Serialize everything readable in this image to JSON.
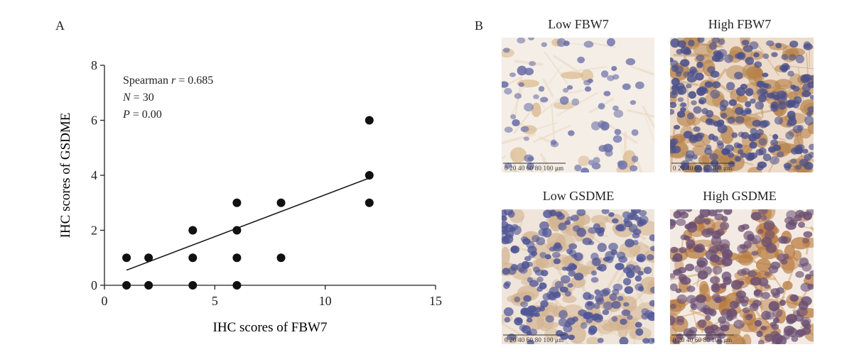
{
  "panels": {
    "a_letter": "A",
    "b_letter": "B"
  },
  "chart_data": {
    "type": "scatter",
    "xlabel": "IHC scores of FBW7",
    "ylabel": "IHC scores of GSDME",
    "xlim": [
      0,
      15
    ],
    "ylim": [
      0,
      8
    ],
    "xticks": [
      0,
      5,
      10,
      15
    ],
    "yticks": [
      0,
      2,
      4,
      6,
      8
    ],
    "points": [
      {
        "x": 1,
        "y": 0
      },
      {
        "x": 1,
        "y": 1
      },
      {
        "x": 2,
        "y": 0
      },
      {
        "x": 2,
        "y": 1
      },
      {
        "x": 4,
        "y": 0
      },
      {
        "x": 4,
        "y": 1
      },
      {
        "x": 4,
        "y": 2
      },
      {
        "x": 6,
        "y": 0
      },
      {
        "x": 6,
        "y": 1
      },
      {
        "x": 6,
        "y": 2
      },
      {
        "x": 6,
        "y": 3
      },
      {
        "x": 8,
        "y": 1
      },
      {
        "x": 8,
        "y": 3
      },
      {
        "x": 12,
        "y": 3
      },
      {
        "x": 12,
        "y": 4
      },
      {
        "x": 12,
        "y": 6
      }
    ],
    "fit_line": {
      "x": [
        1,
        12
      ],
      "y": [
        0.55,
        3.9
      ]
    },
    "annotations": [
      {
        "label": "Spearman ",
        "symbol": "r",
        "value": " = 0.685"
      },
      {
        "label": "",
        "symbol": "N",
        "value": " = 30"
      },
      {
        "label": "",
        "symbol": "P",
        "value": " = 0.00"
      }
    ],
    "grid": false
  },
  "micrographs": [
    {
      "caption": "Low FBW7",
      "scale": "0  20  40  60  80  100 μm",
      "tissue": "low-stroma"
    },
    {
      "caption": "High FBW7",
      "scale": "0  20  40  60  80  100 μm",
      "tissue": "high-dense"
    },
    {
      "caption": "Low GSDME",
      "scale": "0  20  40  60  80  100 μm",
      "tissue": "low-cells"
    },
    {
      "caption": "High GSDME",
      "scale": "0  20  40  60  80  100 μm",
      "tissue": "high-brown"
    }
  ],
  "colors": {
    "point": "#111111",
    "line": "#111111",
    "axis": "#222222",
    "stroma": "#f3ece4",
    "nuclei": "#5a5f9a",
    "brown": "#b8844a"
  }
}
